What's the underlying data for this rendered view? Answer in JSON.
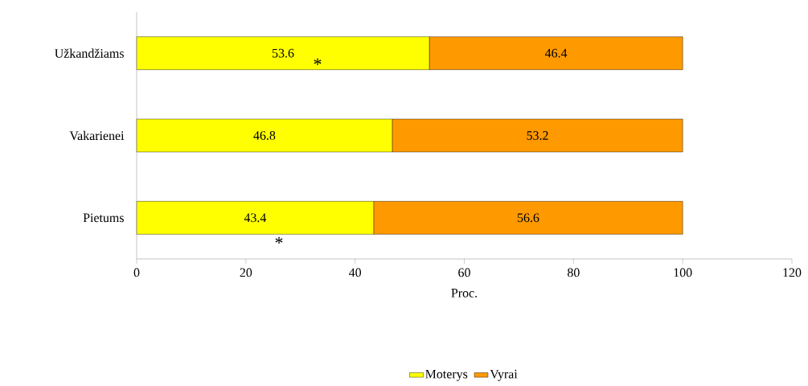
{
  "chart_data": {
    "type": "bar",
    "orientation": "horizontal",
    "stacked": true,
    "xlabel": "Proc.",
    "categories": [
      "Užkandžiams",
      "Vakarienei",
      "Pietums"
    ],
    "series": [
      {
        "name": "Moterys",
        "color": "#ffff00",
        "values": [
          53.6,
          46.8,
          43.4
        ]
      },
      {
        "name": "Vyrai",
        "color": "#ff9900",
        "values": [
          46.4,
          53.2,
          56.6
        ]
      }
    ],
    "xlim": [
      0,
      120
    ],
    "xticks": [
      0,
      20,
      40,
      60,
      80,
      100,
      120
    ],
    "data_labels": true,
    "legend": "bottom",
    "annotations": [
      "*",
      "*"
    ]
  }
}
